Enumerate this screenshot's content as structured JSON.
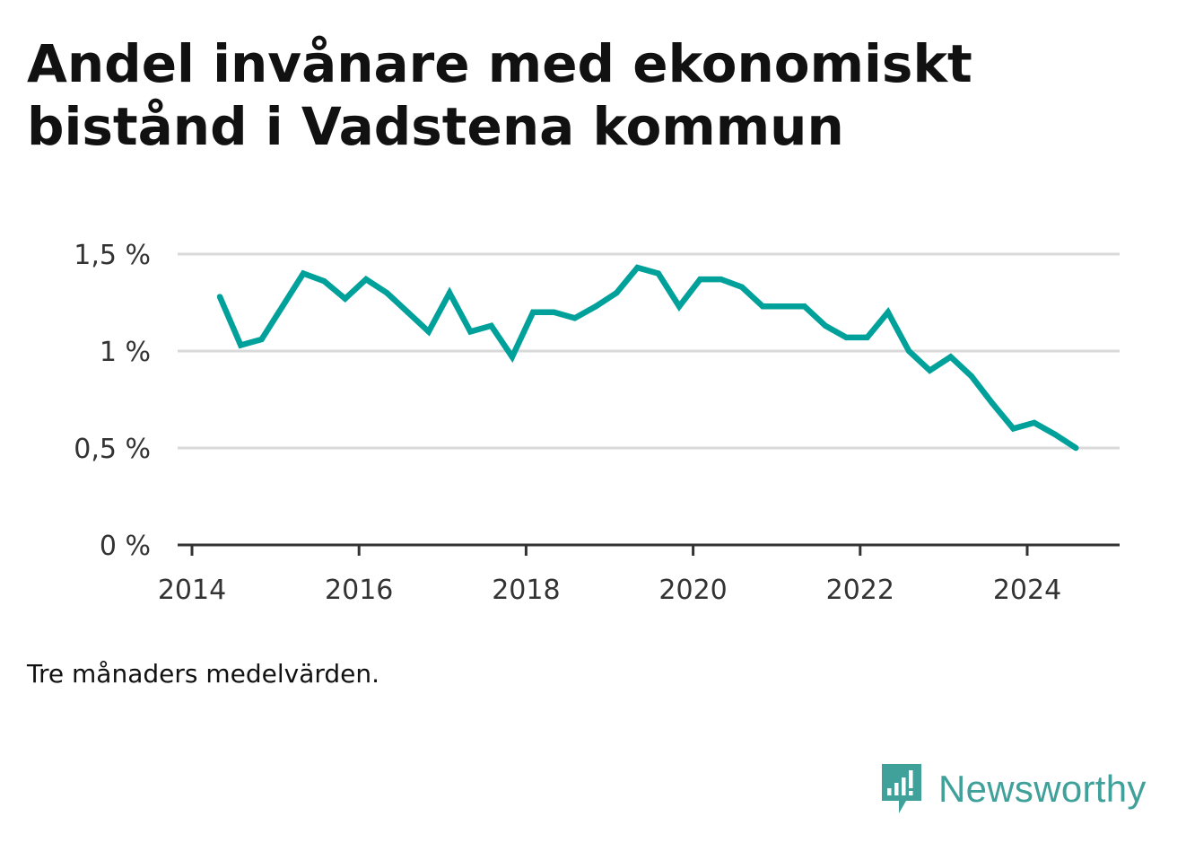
{
  "title": "Andel invånare med ekonomiskt bistånd i Vadstena kommun",
  "note": "Tre månaders medelvärden.",
  "brand": {
    "name": "Newsworthy",
    "icon": "newsworthy-logo-icon",
    "color": "#3fa19a"
  },
  "chart_data": {
    "type": "line",
    "title": "Andel invånare med ekonomiskt bistånd i Vadstena kommun",
    "xlabel": "",
    "ylabel": "",
    "xlim": [
      2014,
      2025.3
    ],
    "ylim": [
      0,
      1.5
    ],
    "grid": true,
    "line_color": "#00a19a",
    "x_ticks": [
      2014,
      2016,
      2018,
      2020,
      2022,
      2024
    ],
    "x_tick_labels": [
      "2014",
      "2016",
      "2018",
      "2020",
      "2022",
      "2024"
    ],
    "y_ticks": [
      0,
      0.5,
      1,
      1.5
    ],
    "y_tick_labels": [
      "0 %",
      "0,5 %",
      "1 %",
      "1,5 %"
    ],
    "series": [
      {
        "x": [
          "2014-05",
          "2014-08",
          "2014-11",
          "2015-02",
          "2015-05",
          "2015-08",
          "2015-11",
          "2016-02",
          "2016-05",
          "2016-08",
          "2016-11",
          "2017-02",
          "2017-05",
          "2017-08",
          "2017-11",
          "2018-02",
          "2018-05",
          "2018-08",
          "2018-11",
          "2019-02",
          "2019-05",
          "2019-08",
          "2019-11",
          "2020-02",
          "2020-05",
          "2020-08",
          "2020-11",
          "2021-02",
          "2021-05",
          "2021-08",
          "2021-11",
          "2022-02",
          "2022-05",
          "2022-08",
          "2022-11",
          "2023-02",
          "2023-05",
          "2023-08",
          "2023-11",
          "2024-02",
          "2024-05",
          "2024-08"
        ],
        "values": [
          1.28,
          1.03,
          1.06,
          1.23,
          1.4,
          1.36,
          1.27,
          1.37,
          1.3,
          1.2,
          1.1,
          1.3,
          1.1,
          1.13,
          0.97,
          1.2,
          1.2,
          1.17,
          1.23,
          1.3,
          1.43,
          1.4,
          1.23,
          1.37,
          1.37,
          1.33,
          1.23,
          1.23,
          1.23,
          1.13,
          1.07,
          1.07,
          1.2,
          1.0,
          0.9,
          0.97,
          0.87,
          0.73,
          0.6,
          0.63,
          0.57,
          0.5
        ]
      }
    ]
  }
}
